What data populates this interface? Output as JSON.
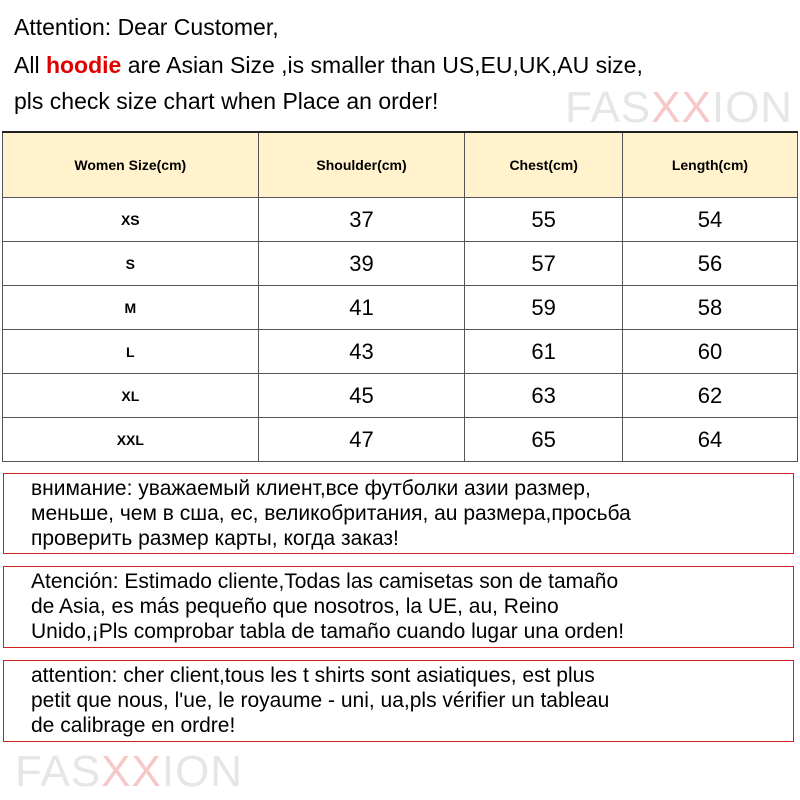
{
  "header": {
    "line1": "Attention: Dear Customer,",
    "line2_prefix": "All ",
    "line2_highlight": "hoodie",
    "line2_suffix": " are  Asian Size ,is smaller than US,EU,UK,AU size,",
    "line3": "pls check size chart when Place an order!",
    "highlight_color": "#e00000"
  },
  "watermark": {
    "part1": "FAS",
    "part2": "XX",
    "part3": "ION"
  },
  "table": {
    "columns": [
      "Women Size(cm)",
      "Shoulder(cm)",
      "Chest(cm)",
      "Length(cm)"
    ],
    "rows": [
      [
        "XS",
        "37",
        "55",
        "54"
      ],
      [
        "S",
        "39",
        "57",
        "56"
      ],
      [
        "M",
        "41",
        "59",
        "58"
      ],
      [
        "L",
        "43",
        "61",
        "60"
      ],
      [
        "XL",
        "45",
        "63",
        "62"
      ],
      [
        "XXL",
        "47",
        "65",
        "64"
      ]
    ],
    "header_bg": "#fff2cc"
  },
  "notices": [
    {
      "lines": [
        "внимание: уважаемый клиент,все футболки азии размер,",
        "меньше, чем в сша, ес, великобритания, au размера,просьба",
        "проверить размер карты, когда заказ!"
      ]
    },
    {
      "lines": [
        "Atención: Estimado cliente,Todas las camisetas son de tamaño",
        "de Asia, es más pequeño que nosotros, la UE, au, Reino",
        "Unido,¡Pls comprobar tabla de tamaño cuando lugar una orden!"
      ]
    },
    {
      "lines": [
        "attention: cher client,tous les t shirts sont asiatiques, est plus",
        "petit que nous, l'ue, le royaume - uni, ua,pls vérifier un tableau",
        "de calibrage en ordre!"
      ]
    }
  ],
  "border_color": "#d02020"
}
